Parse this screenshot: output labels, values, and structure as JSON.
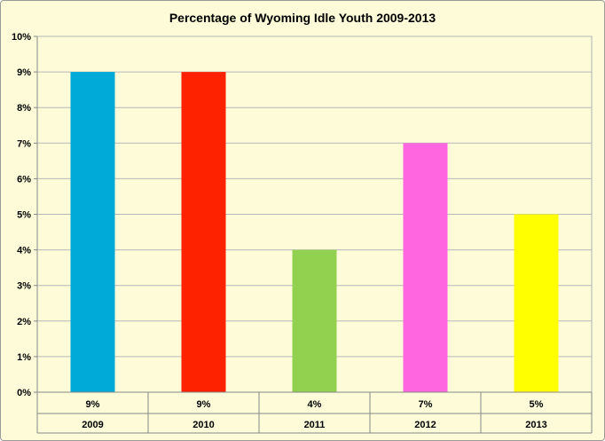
{
  "chart_data": {
    "type": "bar",
    "title": "Percentage of Wyoming Idle Youth 2009-2013",
    "xlabel": "",
    "ylabel": "",
    "categories": [
      "2009",
      "2010",
      "2011",
      "2012",
      "2013"
    ],
    "values": [
      9,
      9,
      4,
      7,
      5
    ],
    "value_labels": [
      "9%",
      "9%",
      "4%",
      "7%",
      "5%"
    ],
    "colors": [
      "#00aad8",
      "#ff2200",
      "#92d050",
      "#ff66e0",
      "#ffff00"
    ],
    "ylim": [
      0,
      10
    ],
    "y_ticks": [
      0,
      1,
      2,
      3,
      4,
      5,
      6,
      7,
      8,
      9,
      10
    ],
    "y_tick_labels": [
      "0%",
      "1%",
      "2%",
      "3%",
      "4%",
      "5%",
      "6%",
      "7%",
      "8%",
      "9%",
      "10%"
    ],
    "grid": true,
    "legend": "none",
    "data_table": true
  }
}
